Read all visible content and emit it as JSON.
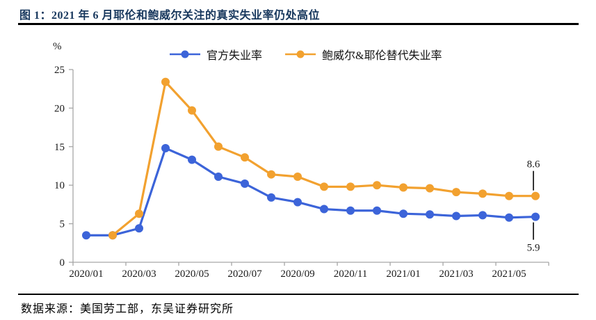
{
  "title": "图 1：2021 年 6 月耶伦和鲍威尔关注的真实失业率仍处高位",
  "footer": {
    "source_label": "数据来源：美国劳工部，东吴证券研究所"
  },
  "colors": {
    "title_navy": "#17375D",
    "axis_gray": "#A6A6A6",
    "text_black": "#1a1a1a",
    "rule_black": "#000000",
    "series_blue": "#3C64D9",
    "series_orange": "#F2A12F"
  },
  "chart_data": {
    "type": "line",
    "unit_label": "%",
    "x": [
      "2020/01",
      "2020/02",
      "2020/03",
      "2020/04",
      "2020/05",
      "2020/06",
      "2020/07",
      "2020/08",
      "2020/09",
      "2020/10",
      "2020/11",
      "2020/12",
      "2021/01",
      "2021/02",
      "2021/03",
      "2021/04",
      "2021/05",
      "2021/06"
    ],
    "x_tick_labels": [
      "2020/01",
      "2020/03",
      "2020/05",
      "2020/07",
      "2020/09",
      "2020/11",
      "2021/01",
      "2021/03",
      "2021/05"
    ],
    "ylim": [
      0,
      25
    ],
    "y_ticks": [
      0,
      5,
      10,
      15,
      20,
      25
    ],
    "grid": false,
    "legend_position": "top",
    "series": [
      {
        "name": "官方失业率",
        "color": "#3C64D9",
        "values": [
          3.5,
          3.5,
          4.4,
          14.8,
          13.3,
          11.1,
          10.2,
          8.4,
          7.8,
          6.9,
          6.7,
          6.7,
          6.3,
          6.2,
          6.0,
          6.1,
          5.8,
          5.9
        ]
      },
      {
        "name": "鲍威尔&耶伦替代失业率",
        "color": "#F2A12F",
        "values": [
          null,
          3.5,
          6.3,
          23.4,
          19.7,
          15.0,
          13.6,
          11.4,
          11.1,
          9.8,
          9.8,
          10.0,
          9.7,
          9.6,
          9.1,
          8.9,
          8.6,
          8.6
        ]
      }
    ],
    "annotations": [
      {
        "label": "8.6",
        "series": 1,
        "point": 17,
        "position": "above"
      },
      {
        "label": "5.9",
        "series": 0,
        "point": 17,
        "position": "below"
      }
    ]
  }
}
